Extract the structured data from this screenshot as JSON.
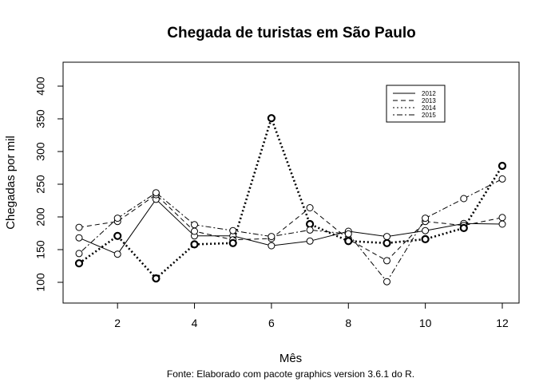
{
  "chart_data": {
    "type": "line",
    "title": "Chegada de turistas em São Paulo",
    "xlabel": "Mês",
    "ylabel": "Chegadas por mil",
    "caption": "Fonte: Elaborado com pacote graphics version 3.6.1 do R.",
    "x": [
      1,
      2,
      3,
      4,
      5,
      6,
      7,
      8,
      9,
      10,
      11,
      12
    ],
    "xlim": [
      1,
      12
    ],
    "ylim": [
      70,
      420
    ],
    "xticks": [
      2,
      4,
      6,
      8,
      10,
      12
    ],
    "yticks": [
      100,
      150,
      200,
      250,
      300,
      350,
      400
    ],
    "legend_position": "top-right",
    "grid": false,
    "series": [
      {
        "name": "2012",
        "lty": "solid",
        "values": [
          168,
          143,
          227,
          171,
          171,
          156,
          163,
          178,
          170,
          179,
          190,
          189
        ]
      },
      {
        "name": "2013",
        "lty": "dashed",
        "values": [
          184,
          193,
          234,
          178,
          165,
          167,
          214,
          166,
          133,
          193,
          187,
          199
        ]
      },
      {
        "name": "2014",
        "lty": "dotted",
        "values": [
          129,
          171,
          106,
          158,
          160,
          351,
          189,
          163,
          160,
          166,
          183,
          278
        ]
      },
      {
        "name": "2015",
        "lty": "dotdash",
        "values": [
          144,
          198,
          237,
          188,
          179,
          170,
          180,
          174,
          101,
          198,
          228,
          258
        ]
      }
    ]
  }
}
